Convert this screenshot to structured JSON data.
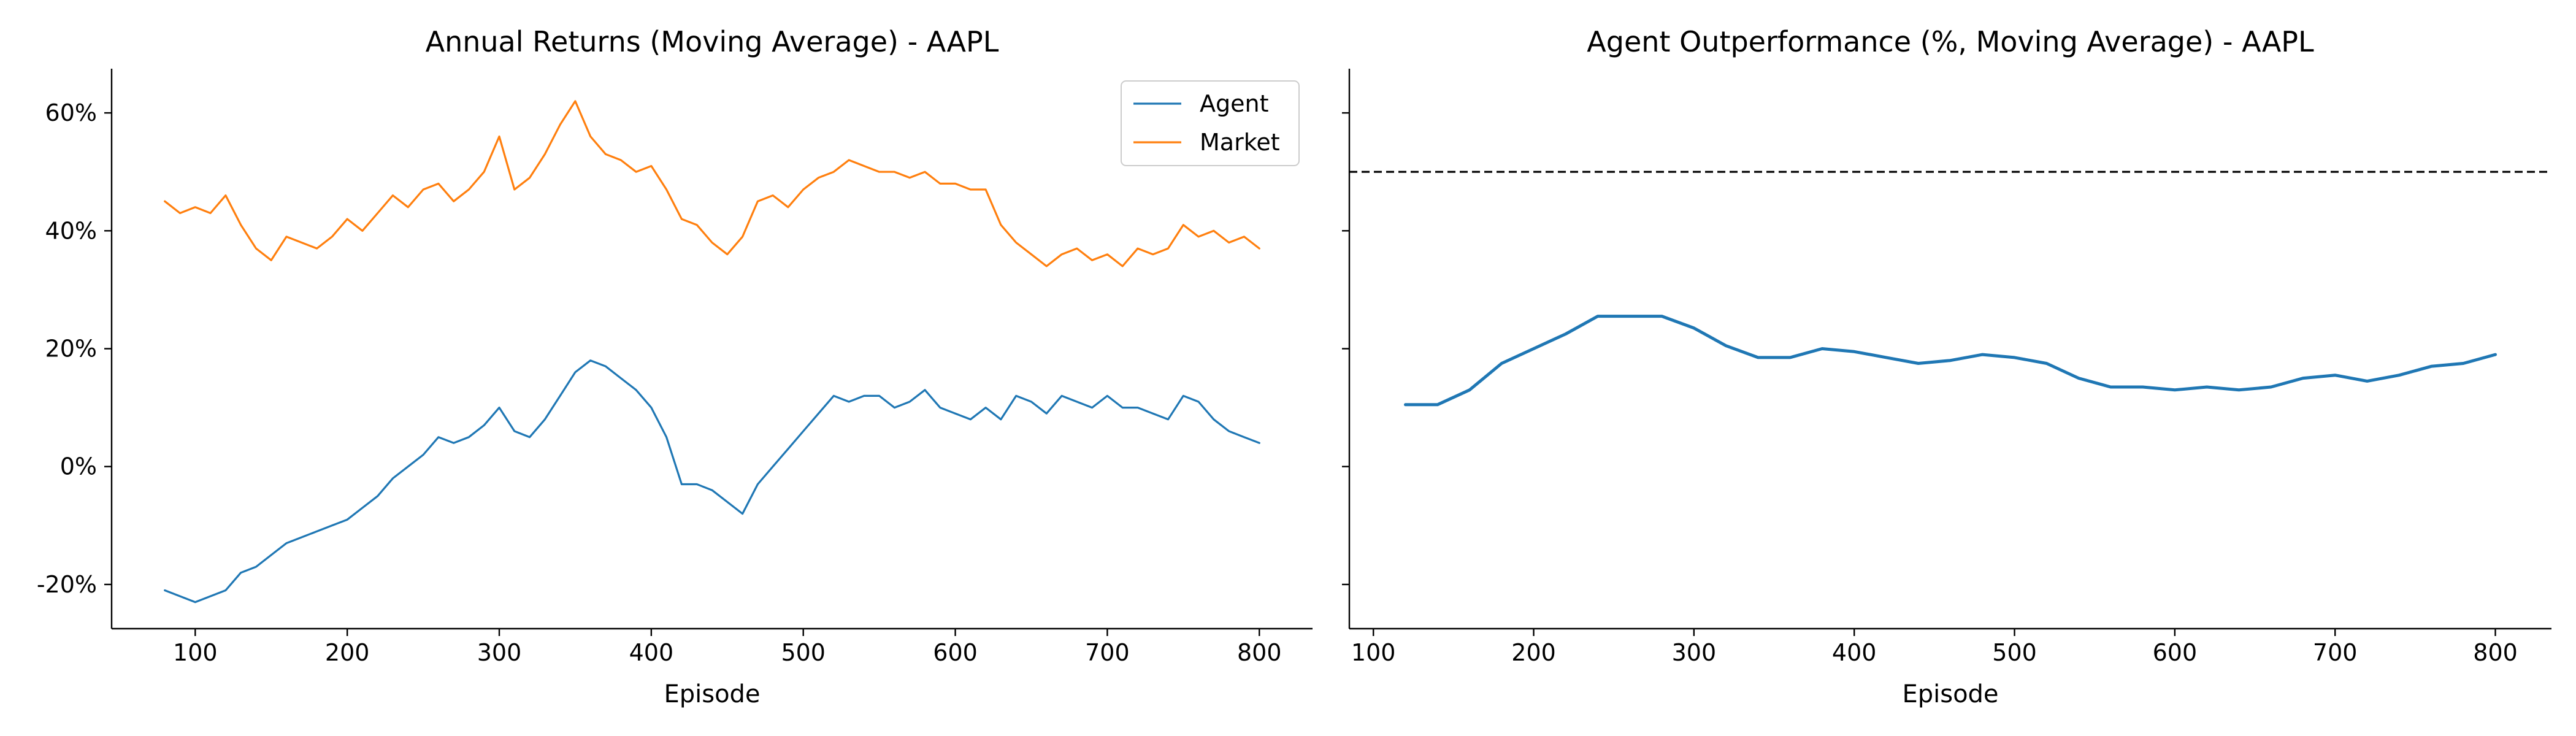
{
  "colors": {
    "agent": "#1f77b4",
    "market": "#ff7f0e",
    "reference": "#000000"
  },
  "chart_data": [
    {
      "type": "line",
      "title": "Annual Returns (Moving Average) - AAPL",
      "xlabel": "Episode",
      "ylabel": "",
      "xlim": [
        45,
        835
      ],
      "ylim": [
        -27.5,
        67.5
      ],
      "xticks": [
        100,
        200,
        300,
        400,
        500,
        600,
        700,
        800
      ],
      "yticks": [
        -20,
        0,
        20,
        40,
        60
      ],
      "ytick_labels": [
        "-20%",
        "0%",
        "20%",
        "40%",
        "60%"
      ],
      "legend": {
        "position": "top-right",
        "entries": [
          "Agent",
          "Market"
        ]
      },
      "grid": false,
      "series": [
        {
          "name": "Agent",
          "color": "#1f77b4",
          "x": [
            80,
            90,
            100,
            110,
            120,
            130,
            140,
            150,
            160,
            170,
            180,
            190,
            200,
            210,
            220,
            230,
            240,
            250,
            260,
            270,
            280,
            290,
            300,
            310,
            320,
            330,
            340,
            350,
            360,
            370,
            380,
            390,
            400,
            410,
            420,
            430,
            440,
            450,
            460,
            470,
            480,
            490,
            500,
            510,
            520,
            530,
            540,
            550,
            560,
            570,
            580,
            590,
            600,
            610,
            620,
            630,
            640,
            650,
            660,
            670,
            680,
            690,
            700,
            710,
            720,
            730,
            740,
            750,
            760,
            770,
            780,
            790,
            800
          ],
          "y": [
            -21,
            -22,
            -23,
            -22,
            -21,
            -18,
            -17,
            -15,
            -13,
            -12,
            -11,
            -10,
            -9,
            -7,
            -5,
            -2,
            0,
            2,
            5,
            4,
            5,
            7,
            10,
            6,
            5,
            8,
            12,
            16,
            18,
            17,
            15,
            13,
            10,
            5,
            -3,
            -3,
            -4,
            -6,
            -8,
            -3,
            0,
            3,
            6,
            9,
            12,
            11,
            12,
            12,
            10,
            11,
            13,
            10,
            9,
            8,
            10,
            8,
            12,
            11,
            9,
            12,
            11,
            10,
            12,
            10,
            10,
            9,
            8,
            12,
            11,
            8,
            6,
            5,
            4
          ]
        },
        {
          "name": "Market",
          "color": "#ff7f0e",
          "x": [
            80,
            90,
            100,
            110,
            120,
            130,
            140,
            150,
            160,
            170,
            180,
            190,
            200,
            210,
            220,
            230,
            240,
            250,
            260,
            270,
            280,
            290,
            300,
            310,
            320,
            330,
            340,
            350,
            360,
            370,
            380,
            390,
            400,
            410,
            420,
            430,
            440,
            450,
            460,
            470,
            480,
            490,
            500,
            510,
            520,
            530,
            540,
            550,
            560,
            570,
            580,
            590,
            600,
            610,
            620,
            630,
            640,
            650,
            660,
            670,
            680,
            690,
            700,
            710,
            720,
            730,
            740,
            750,
            760,
            770,
            780,
            790,
            800
          ],
          "y": [
            45,
            43,
            44,
            43,
            46,
            41,
            37,
            35,
            39,
            38,
            37,
            39,
            42,
            40,
            43,
            46,
            44,
            47,
            48,
            45,
            47,
            50,
            56,
            47,
            49,
            53,
            58,
            62,
            56,
            53,
            52,
            50,
            51,
            47,
            42,
            41,
            38,
            36,
            39,
            45,
            46,
            44,
            47,
            49,
            50,
            52,
            51,
            50,
            50,
            49,
            50,
            48,
            48,
            47,
            47,
            41,
            38,
            36,
            34,
            36,
            37,
            35,
            36,
            34,
            37,
            36,
            37,
            41,
            39,
            40,
            38,
            39,
            37
          ]
        }
      ]
    },
    {
      "type": "line",
      "title": "Agent Outperformance (%, Moving Average) - AAPL",
      "xlabel": "Episode",
      "ylabel": "",
      "xlim": [
        85,
        835
      ],
      "ylim": [
        -27.5,
        67.5
      ],
      "xticks": [
        100,
        200,
        300,
        400,
        500,
        600,
        700,
        800
      ],
      "yticks": [
        -20,
        0,
        20,
        40,
        60
      ],
      "ytick_labels": [
        "",
        "",
        "",
        "",
        ""
      ],
      "grid": false,
      "reference_line": {
        "y": 50,
        "style": "dashed",
        "color": "#000000"
      },
      "series": [
        {
          "name": "Agent Outperformance",
          "color": "#1f77b4",
          "x": [
            120,
            140,
            160,
            180,
            200,
            220,
            240,
            260,
            280,
            300,
            320,
            340,
            360,
            380,
            400,
            420,
            440,
            460,
            480,
            500,
            520,
            540,
            560,
            580,
            600,
            620,
            640,
            660,
            680,
            700,
            720,
            740,
            760,
            780,
            800
          ],
          "y": [
            10.5,
            10.5,
            13,
            17.5,
            20,
            22.5,
            25.5,
            25.5,
            25.5,
            23.5,
            20.5,
            18.5,
            18.5,
            20,
            19.5,
            18.5,
            17.5,
            18,
            19,
            18.5,
            17.5,
            15,
            13.5,
            13.5,
            13,
            13.5,
            13,
            13.5,
            15,
            15.5,
            14.5,
            15.5,
            17,
            17.5,
            19
          ]
        }
      ]
    }
  ]
}
